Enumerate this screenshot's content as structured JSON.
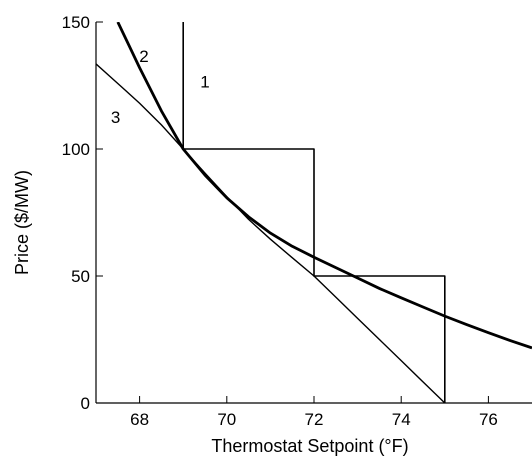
{
  "chart_data": {
    "type": "line",
    "title": "",
    "xlabel": "Thermostat Setpoint (°F)",
    "ylabel": "Price ($/MW)",
    "xlim": [
      67,
      77
    ],
    "ylim": [
      0,
      150
    ],
    "xticks": [
      68,
      70,
      72,
      74,
      76
    ],
    "yticks": [
      0,
      50,
      100,
      150
    ],
    "grid": false,
    "legend": "none",
    "series": [
      {
        "label": "1",
        "style": "step",
        "points": [
          [
            69,
            150
          ],
          [
            69,
            100
          ],
          [
            72,
            100
          ],
          [
            72,
            50
          ],
          [
            75,
            50
          ],
          [
            75,
            0
          ]
        ]
      },
      {
        "label": "2",
        "style": "curve-thick",
        "points": [
          [
            67.5,
            150
          ],
          [
            68,
            132
          ],
          [
            68.5,
            115
          ],
          [
            69,
            100
          ],
          [
            69.5,
            89.7
          ],
          [
            70,
            80.8
          ],
          [
            70.5,
            73.3
          ],
          [
            71,
            66.9
          ],
          [
            71.5,
            61.7
          ],
          [
            72,
            57.4
          ],
          [
            72.5,
            53.3
          ],
          [
            73,
            49.2
          ],
          [
            73.5,
            45.1
          ],
          [
            74,
            41.4
          ],
          [
            74.5,
            37.8
          ],
          [
            75,
            34.2
          ],
          [
            75.5,
            30.9
          ],
          [
            76,
            27.7
          ],
          [
            76.5,
            24.6
          ],
          [
            77,
            21.7
          ]
        ]
      },
      {
        "label": "3",
        "style": "curve-thin",
        "points": [
          [
            67,
            133.5
          ],
          [
            67.5,
            125.8
          ],
          [
            68,
            118
          ],
          [
            68.5,
            109.5
          ],
          [
            69,
            100
          ],
          [
            69.5,
            90.5
          ],
          [
            70,
            81.2
          ],
          [
            70.5,
            72.3
          ],
          [
            71,
            64.5
          ],
          [
            71.5,
            57.2
          ],
          [
            72,
            50
          ],
          [
            72.5,
            41.7
          ],
          [
            73,
            33.3
          ],
          [
            73.5,
            25
          ],
          [
            74,
            16.7
          ],
          [
            74.5,
            8.3
          ],
          [
            75,
            0
          ]
        ]
      }
    ],
    "annotations": [
      {
        "text": "1",
        "x": 69.5,
        "y": 126
      },
      {
        "text": "2",
        "x": 68.1,
        "y": 136
      },
      {
        "text": "3",
        "x": 67.45,
        "y": 112
      }
    ]
  }
}
